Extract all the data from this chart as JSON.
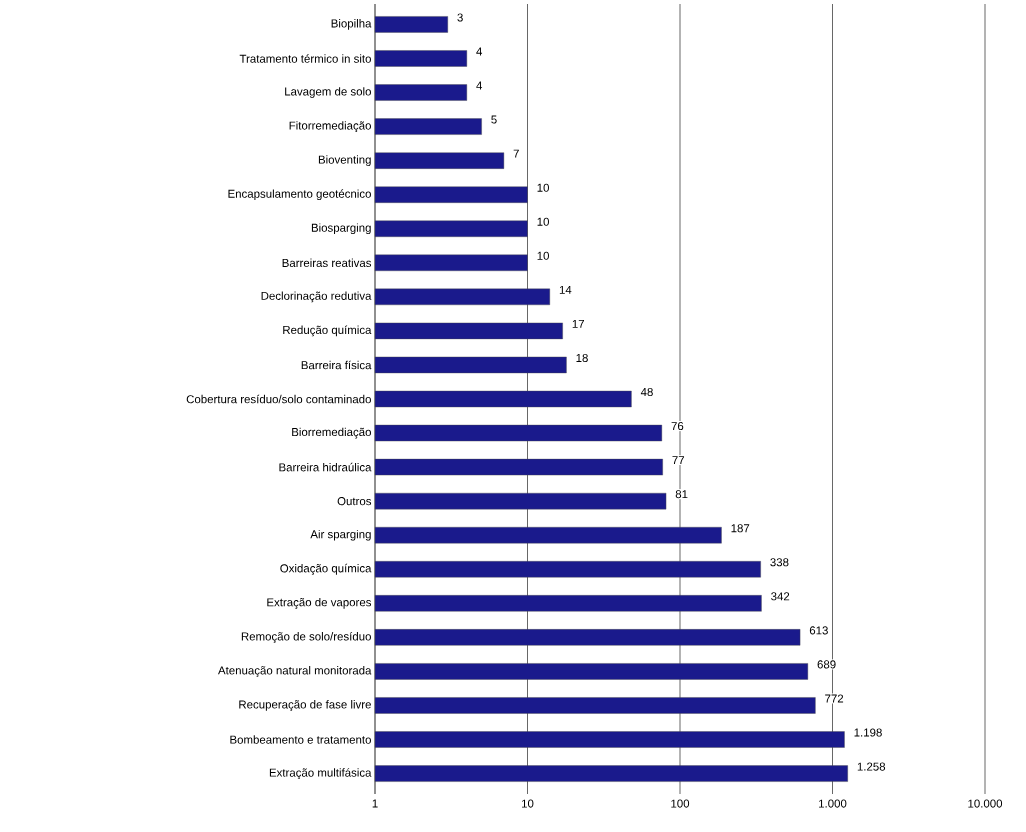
{
  "chart_data": {
    "type": "bar",
    "orientation": "horizontal",
    "log": "x",
    "grid": "x",
    "categories": [
      "Biopilha",
      "Tratamento térmico in sito",
      "Lavagem de solo",
      "Fitorremediação",
      "Bioventing",
      "Encapsulamento geotécnico",
      "Biosparging",
      "Barreiras reativas",
      "Declorinação redutiva",
      "Redução química",
      "Barreira física",
      "Cobertura resíduo/solo contaminado",
      "Biorremediação",
      "Barreira hidraúlica",
      "Outros",
      "Air sparging",
      "Oxidação química",
      "Extração de vapores",
      "Remoção de solo/resíduo",
      "Atenuação natural monitorada",
      "Recuperação de fase livre",
      "Bombeamento e tratamento",
      "Extração multifásica"
    ],
    "values": [
      3,
      4,
      4,
      5,
      7,
      10,
      10,
      10,
      14,
      17,
      18,
      48,
      76,
      77,
      81,
      187,
      338,
      342,
      613,
      689,
      772,
      1198,
      1258
    ],
    "value_labels": [
      "3",
      "4",
      "4",
      "5",
      "7",
      "10",
      "10",
      "10",
      "14",
      "17",
      "18",
      "48",
      "76",
      "77",
      "81",
      "187",
      "338",
      "342",
      "613",
      "689",
      "772",
      "1.198",
      "1.258"
    ],
    "color": "#1a1a8c",
    "xlim": [
      1,
      10000
    ],
    "xticks": [
      1,
      10,
      100,
      {
        "value": 1000,
        "label": "1.000"
      },
      {
        "value": 10000,
        "label": "10.000"
      }
    ]
  }
}
